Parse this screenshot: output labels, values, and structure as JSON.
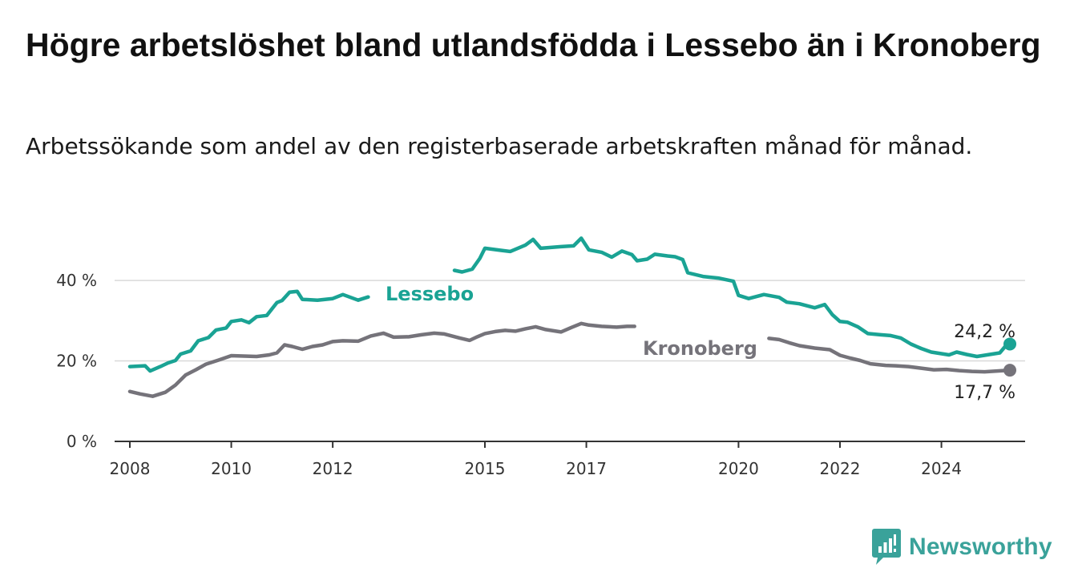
{
  "header": {
    "title": "Högre arbetslöshet bland utlandsfödda i Lessebo än i Kronoberg",
    "subtitle": "Arbetssökande som andel av den registerbaserade arbetskraften månad för månad."
  },
  "brand": {
    "name": "Newsworthy",
    "icon": "newsworthy-logo-icon",
    "color": "#3aa29a"
  },
  "chart_data": {
    "type": "line",
    "title": "Högre arbetslöshet bland utlandsfödda i Lessebo än i Kronoberg",
    "subtitle": "Arbetssökande som andel av den registerbaserade arbetskraften månad för månad.",
    "xlabel": "",
    "ylabel": "",
    "x_ticks": [
      "2008",
      "2010",
      "2012",
      "2015",
      "2017",
      "2020",
      "2022",
      "2024"
    ],
    "y_ticks": [
      "0 %",
      "20 %",
      "40 %"
    ],
    "y_tick_values": [
      0,
      20,
      40
    ],
    "xlim": [
      2007.7,
      2025.65
    ],
    "ylim": [
      0,
      44
    ],
    "grid": true,
    "legend": "inline labels",
    "series": [
      {
        "name": "Lessebo",
        "color": "#1aa394",
        "end_label": "24,2 %",
        "points": [
          [
            2008.0,
            18.6
          ],
          [
            2008.3,
            18.8
          ],
          [
            2008.4,
            17.5
          ],
          [
            2008.6,
            18.6
          ],
          [
            2008.75,
            19.5
          ],
          [
            2008.9,
            20.1
          ],
          [
            2009.0,
            21.7
          ],
          [
            2009.2,
            22.5
          ],
          [
            2009.35,
            25.0
          ],
          [
            2009.55,
            25.8
          ],
          [
            2009.7,
            27.7
          ],
          [
            2009.9,
            28.2
          ],
          [
            2010.0,
            29.8
          ],
          [
            2010.2,
            30.2
          ],
          [
            2010.35,
            29.5
          ],
          [
            2010.5,
            31.0
          ],
          [
            2010.7,
            31.3
          ],
          [
            2010.9,
            34.5
          ],
          [
            2011.0,
            35.0
          ],
          [
            2011.15,
            37.1
          ],
          [
            2011.3,
            37.3
          ],
          [
            2011.4,
            35.3
          ],
          [
            2011.7,
            35.1
          ],
          [
            2012.0,
            35.5
          ],
          [
            2012.2,
            36.5
          ],
          [
            2012.5,
            35.1
          ],
          [
            2012.7,
            35.9
          ],
          null,
          [
            2014.4,
            42.5
          ],
          [
            2014.55,
            42.1
          ],
          [
            2014.75,
            42.8
          ],
          [
            2014.9,
            45.5
          ],
          [
            2015.0,
            48.0
          ],
          [
            2015.3,
            47.5
          ],
          [
            2015.5,
            47.2
          ],
          [
            2015.8,
            48.8
          ],
          [
            2015.95,
            50.2
          ],
          [
            2016.1,
            48.0
          ],
          [
            2016.5,
            48.4
          ],
          [
            2016.75,
            48.6
          ],
          [
            2016.9,
            50.5
          ],
          [
            2017.05,
            47.6
          ],
          [
            2017.3,
            47.0
          ],
          [
            2017.5,
            45.8
          ],
          [
            2017.7,
            47.3
          ],
          [
            2017.9,
            46.4
          ],
          [
            2018.0,
            44.9
          ],
          [
            2018.2,
            45.3
          ],
          [
            2018.35,
            46.5
          ],
          [
            2018.6,
            46.1
          ],
          [
            2018.75,
            45.9
          ],
          [
            2018.9,
            45.2
          ],
          [
            2019.0,
            41.9
          ],
          [
            2019.3,
            41.0
          ],
          [
            2019.6,
            40.6
          ],
          [
            2019.9,
            39.8
          ],
          [
            2020.0,
            36.3
          ],
          [
            2020.2,
            35.5
          ],
          [
            2020.5,
            36.5
          ],
          [
            2020.8,
            35.8
          ],
          [
            2020.95,
            34.6
          ],
          [
            2021.2,
            34.2
          ],
          [
            2021.5,
            33.2
          ],
          [
            2021.7,
            34.0
          ],
          [
            2021.85,
            31.5
          ],
          [
            2022.0,
            29.8
          ],
          [
            2022.15,
            29.6
          ],
          [
            2022.35,
            28.5
          ],
          [
            2022.55,
            26.8
          ],
          [
            2022.8,
            26.5
          ],
          [
            2023.0,
            26.3
          ],
          [
            2023.2,
            25.7
          ],
          [
            2023.4,
            24.2
          ],
          [
            2023.6,
            23.1
          ],
          [
            2023.8,
            22.2
          ],
          [
            2024.0,
            21.8
          ],
          [
            2024.15,
            21.5
          ],
          [
            2024.3,
            22.2
          ],
          [
            2024.5,
            21.6
          ],
          [
            2024.7,
            21.1
          ],
          [
            2024.85,
            21.4
          ],
          [
            2025.0,
            21.7
          ],
          [
            2025.15,
            22.0
          ],
          [
            2025.25,
            23.5
          ],
          [
            2025.35,
            24.2
          ]
        ]
      },
      {
        "name": "Kronoberg",
        "color": "#75737a",
        "end_label": "17,7 %",
        "points": [
          [
            2008.0,
            12.4
          ],
          [
            2008.2,
            11.8
          ],
          [
            2008.45,
            11.2
          ],
          [
            2008.7,
            12.2
          ],
          [
            2008.9,
            14.0
          ],
          [
            2009.1,
            16.5
          ],
          [
            2009.3,
            17.8
          ],
          [
            2009.5,
            19.2
          ],
          [
            2009.75,
            20.2
          ],
          [
            2010.0,
            21.3
          ],
          [
            2010.25,
            21.2
          ],
          [
            2010.5,
            21.1
          ],
          [
            2010.75,
            21.5
          ],
          [
            2010.9,
            22.0
          ],
          [
            2011.05,
            24.0
          ],
          [
            2011.2,
            23.6
          ],
          [
            2011.4,
            22.9
          ],
          [
            2011.6,
            23.6
          ],
          [
            2011.8,
            24.0
          ],
          [
            2012.0,
            24.8
          ],
          [
            2012.2,
            25.0
          ],
          [
            2012.5,
            24.9
          ],
          [
            2012.75,
            26.2
          ],
          [
            2013.0,
            26.9
          ],
          [
            2013.2,
            25.9
          ],
          [
            2013.5,
            26.0
          ],
          [
            2013.75,
            26.5
          ],
          [
            2014.0,
            26.9
          ],
          [
            2014.2,
            26.7
          ],
          [
            2014.5,
            25.7
          ],
          [
            2014.7,
            25.1
          ],
          [
            2014.85,
            26.0
          ],
          [
            2015.0,
            26.8
          ],
          [
            2015.2,
            27.3
          ],
          [
            2015.4,
            27.6
          ],
          [
            2015.6,
            27.4
          ],
          [
            2015.8,
            28.0
          ],
          [
            2016.0,
            28.5
          ],
          [
            2016.2,
            27.8
          ],
          [
            2016.5,
            27.2
          ],
          [
            2016.7,
            28.3
          ],
          [
            2016.9,
            29.3
          ],
          [
            2017.05,
            28.9
          ],
          [
            2017.3,
            28.6
          ],
          [
            2017.6,
            28.4
          ],
          [
            2017.8,
            28.6
          ],
          [
            2017.95,
            28.6
          ],
          null,
          [
            2020.6,
            25.6
          ],
          [
            2020.8,
            25.3
          ],
          [
            2021.0,
            24.5
          ],
          [
            2021.2,
            23.8
          ],
          [
            2021.5,
            23.2
          ],
          [
            2021.8,
            22.8
          ],
          [
            2022.0,
            21.4
          ],
          [
            2022.2,
            20.7
          ],
          [
            2022.4,
            20.1
          ],
          [
            2022.6,
            19.3
          ],
          [
            2022.9,
            18.9
          ],
          [
            2023.1,
            18.8
          ],
          [
            2023.35,
            18.6
          ],
          [
            2023.6,
            18.2
          ],
          [
            2023.85,
            17.8
          ],
          [
            2024.1,
            17.9
          ],
          [
            2024.35,
            17.6
          ],
          [
            2024.6,
            17.4
          ],
          [
            2024.85,
            17.3
          ],
          [
            2025.1,
            17.5
          ],
          [
            2025.35,
            17.7
          ]
        ]
      }
    ]
  }
}
